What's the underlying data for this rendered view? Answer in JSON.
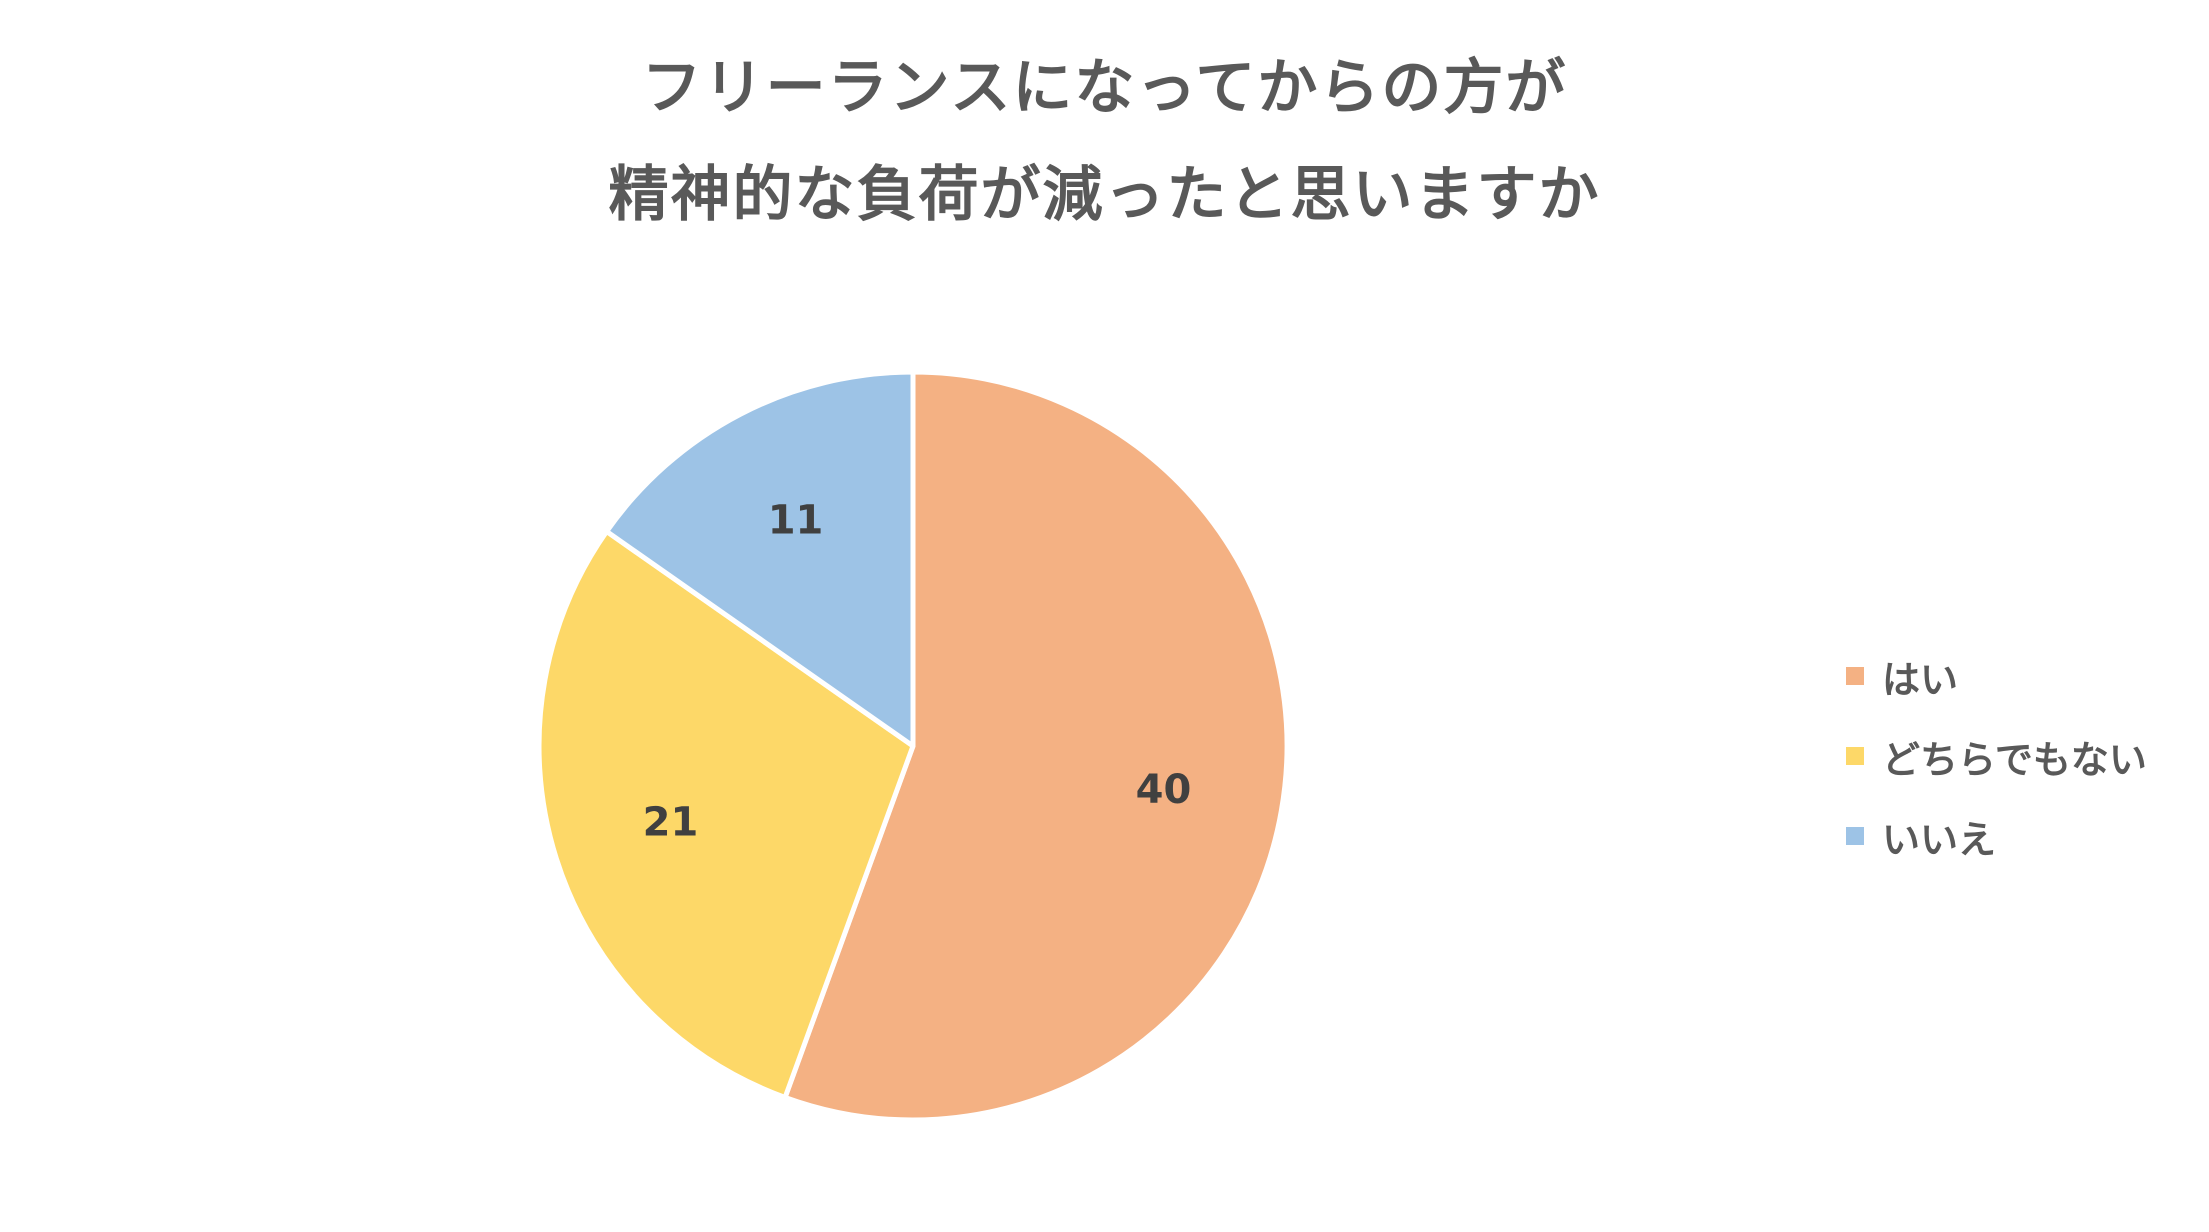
{
  "chart_data": {
    "type": "pie",
    "title_lines": [
      "フリーランスになってからの方が",
      "精神的な負荷が減ったと思いますか"
    ],
    "categories": [
      "はい",
      "どちらでもない",
      "いいえ"
    ],
    "values": [
      40,
      21,
      11
    ],
    "colors": [
      "#F4B183",
      "#FDD868",
      "#9DC3E6"
    ],
    "slice_border_color": "#FFFFFF",
    "data_labels": [
      "40",
      "21",
      "11"
    ],
    "start_angle": "12 o'clock",
    "direction": "clockwise",
    "legend_position": "right"
  }
}
